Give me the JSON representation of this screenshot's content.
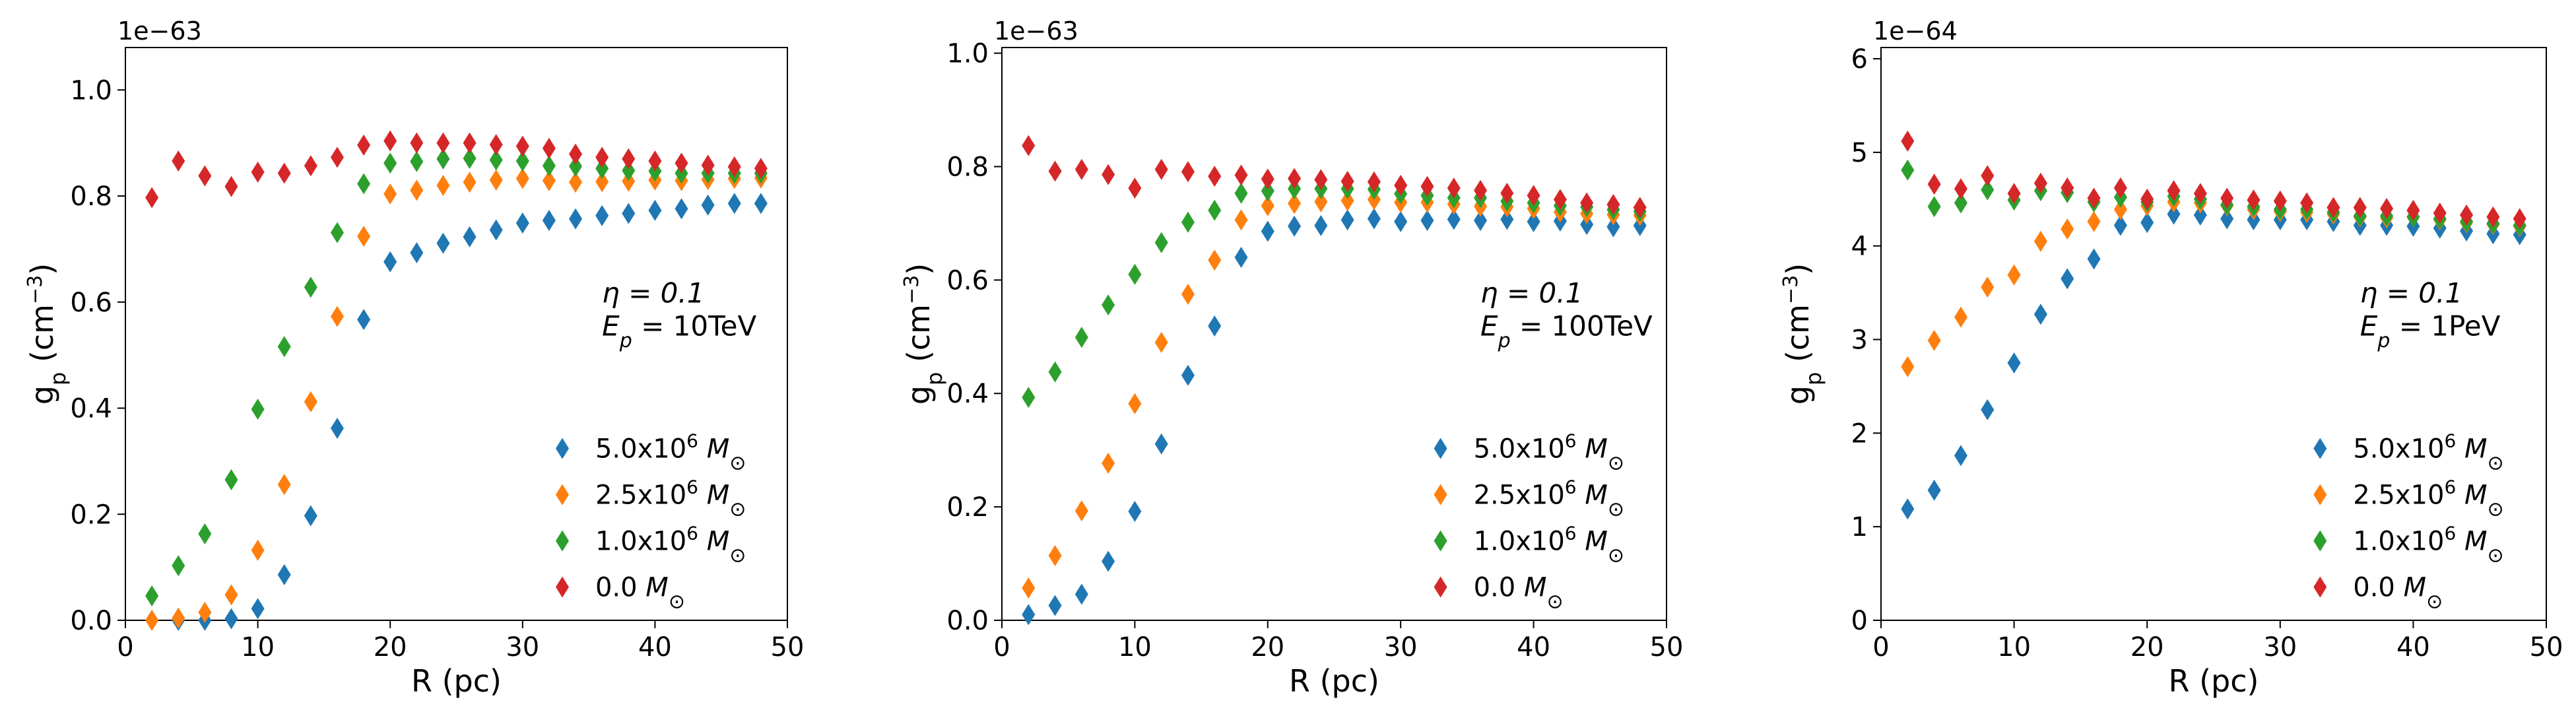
{
  "chart_data": [
    {
      "type": "scatter",
      "marker": "diamond",
      "xlabel": "R (pc)",
      "ylabel": "g_p (cm^-3)",
      "ylabel_parts": {
        "base": "g",
        "sub": "p",
        "unit_open": " (cm",
        "sup": "−3",
        "unit_close": ")"
      },
      "offset_text": "1e−63",
      "xlim": [
        0,
        50
      ],
      "ylim": [
        0.0,
        1.08
      ],
      "xticks": [
        0,
        10,
        20,
        30,
        40,
        50
      ],
      "xtick_labels": [
        "0",
        "10",
        "20",
        "30",
        "40",
        "50"
      ],
      "yticks": [
        0.0,
        0.2,
        0.4,
        0.6,
        0.8,
        1.0
      ],
      "ytick_labels": [
        "0.0",
        "0.2",
        "0.4",
        "0.6",
        "0.8",
        "1.0"
      ],
      "annotation": {
        "eta": "η = 0.1",
        "ep_var": "E",
        "ep_sub": "p",
        "ep_val": " = 10TeV"
      },
      "x": [
        2,
        4,
        6,
        8,
        10,
        12,
        14,
        16,
        18,
        20,
        22,
        24,
        26,
        28,
        30,
        32,
        34,
        36,
        38,
        40,
        42,
        44,
        46,
        48
      ],
      "series": [
        {
          "name": "5.0x10^6 M_⊙",
          "color": "#1f77b4",
          "label": {
            "pre": "5.0x10",
            "sup": "6",
            "post": " M",
            "sub": "⊙"
          },
          "values": [
            0.0,
            0.0,
            0.0,
            0.003,
            0.022,
            0.086,
            0.197,
            0.362,
            0.567,
            0.676,
            0.693,
            0.711,
            0.723,
            0.736,
            0.749,
            0.754,
            0.757,
            0.763,
            0.767,
            0.773,
            0.776,
            0.783,
            0.786,
            0.786
          ]
        },
        {
          "name": "2.5x10^6 M_⊙",
          "color": "#ff7f0e",
          "label": {
            "pre": "2.5x10",
            "sup": "6",
            "post": " M",
            "sub": "⊙"
          },
          "values": [
            0.0,
            0.004,
            0.015,
            0.048,
            0.132,
            0.256,
            0.412,
            0.573,
            0.724,
            0.804,
            0.811,
            0.82,
            0.826,
            0.83,
            0.833,
            0.829,
            0.826,
            0.827,
            0.828,
            0.83,
            0.829,
            0.831,
            0.833,
            0.834
          ]
        },
        {
          "name": "1.0x10^6 M_⊙",
          "color": "#2ca02c",
          "label": {
            "pre": "1.0x10",
            "sup": "6",
            "post": " M",
            "sub": "⊙"
          },
          "values": [
            0.046,
            0.103,
            0.163,
            0.265,
            0.398,
            0.516,
            0.628,
            0.731,
            0.823,
            0.862,
            0.865,
            0.87,
            0.871,
            0.868,
            0.866,
            0.857,
            0.856,
            0.852,
            0.848,
            0.847,
            0.843,
            0.843,
            0.843,
            0.843
          ]
        },
        {
          "name": "0.0 M_⊙",
          "color": "#d62728",
          "label": {
            "pre": "0.0",
            "sup": "",
            "post": " M",
            "sub": "⊙"
          },
          "values": [
            0.797,
            0.866,
            0.838,
            0.818,
            0.845,
            0.843,
            0.857,
            0.873,
            0.896,
            0.904,
            0.9,
            0.9,
            0.9,
            0.897,
            0.894,
            0.89,
            0.879,
            0.873,
            0.87,
            0.866,
            0.862,
            0.858,
            0.855,
            0.852
          ]
        }
      ]
    },
    {
      "type": "scatter",
      "marker": "diamond",
      "xlabel": "R (pc)",
      "ylabel": "g_p (cm^-3)",
      "ylabel_parts": {
        "base": "g",
        "sub": "p",
        "unit_open": " (cm",
        "sup": "−3",
        "unit_close": ")"
      },
      "offset_text": "1e−63",
      "xlim": [
        0,
        50
      ],
      "ylim": [
        0.0,
        1.01
      ],
      "xticks": [
        0,
        10,
        20,
        30,
        40,
        50
      ],
      "xtick_labels": [
        "0",
        "10",
        "20",
        "30",
        "40",
        "50"
      ],
      "yticks": [
        0.0,
        0.2,
        0.4,
        0.6,
        0.8,
        1.0
      ],
      "ytick_labels": [
        "0.0",
        "0.2",
        "0.4",
        "0.6",
        "0.8",
        "1.0"
      ],
      "annotation": {
        "eta": "η = 0.1",
        "ep_var": "E",
        "ep_sub": "p",
        "ep_val": " = 100TeV"
      },
      "x": [
        2,
        4,
        6,
        8,
        10,
        12,
        14,
        16,
        18,
        20,
        22,
        24,
        26,
        28,
        30,
        32,
        34,
        36,
        38,
        40,
        42,
        44,
        46,
        48
      ],
      "series": [
        {
          "name": "5.0x10^6 M_⊙",
          "color": "#1f77b4",
          "label": {
            "pre": "5.0x10",
            "sup": "6",
            "post": " M",
            "sub": "⊙"
          },
          "values": [
            0.01,
            0.026,
            0.046,
            0.104,
            0.192,
            0.311,
            0.432,
            0.519,
            0.64,
            0.686,
            0.695,
            0.696,
            0.706,
            0.708,
            0.703,
            0.705,
            0.707,
            0.705,
            0.707,
            0.703,
            0.704,
            0.698,
            0.694,
            0.696
          ]
        },
        {
          "name": "2.5x10^6 M_⊙",
          "color": "#ff7f0e",
          "label": {
            "pre": "2.5x10",
            "sup": "6",
            "post": " M",
            "sub": "⊙"
          },
          "values": [
            0.057,
            0.114,
            0.193,
            0.277,
            0.382,
            0.49,
            0.575,
            0.635,
            0.706,
            0.731,
            0.735,
            0.738,
            0.74,
            0.742,
            0.737,
            0.737,
            0.734,
            0.73,
            0.729,
            0.726,
            0.72,
            0.717,
            0.715,
            0.714
          ]
        },
        {
          "name": "1.0x10^6 M_⊙",
          "color": "#2ca02c",
          "label": {
            "pre": "1.0x10",
            "sup": "6",
            "post": " M",
            "sub": "⊙"
          },
          "values": [
            0.393,
            0.438,
            0.499,
            0.556,
            0.61,
            0.666,
            0.702,
            0.723,
            0.753,
            0.757,
            0.761,
            0.761,
            0.761,
            0.76,
            0.752,
            0.749,
            0.745,
            0.745,
            0.739,
            0.736,
            0.731,
            0.729,
            0.724,
            0.721
          ]
        },
        {
          "name": "0.0 M_⊙",
          "color": "#d62728",
          "label": {
            "pre": "0.0",
            "sup": "",
            "post": " M",
            "sub": "⊙"
          },
          "values": [
            0.837,
            0.792,
            0.795,
            0.786,
            0.762,
            0.795,
            0.791,
            0.783,
            0.785,
            0.778,
            0.779,
            0.777,
            0.774,
            0.773,
            0.767,
            0.765,
            0.762,
            0.758,
            0.753,
            0.749,
            0.742,
            0.736,
            0.733,
            0.728
          ]
        }
      ]
    },
    {
      "type": "scatter",
      "marker": "diamond",
      "xlabel": "R (pc)",
      "ylabel": "g_p (cm^-3)",
      "ylabel_parts": {
        "base": "g",
        "sub": "p",
        "unit_open": " (cm",
        "sup": "−3",
        "unit_close": ")"
      },
      "offset_text": "1e−64",
      "xlim": [
        0,
        50
      ],
      "ylim": [
        0,
        6.12
      ],
      "xticks": [
        0,
        10,
        20,
        30,
        40,
        50
      ],
      "xtick_labels": [
        "0",
        "10",
        "20",
        "30",
        "40",
        "50"
      ],
      "yticks": [
        0,
        1,
        2,
        3,
        4,
        5,
        6
      ],
      "ytick_labels": [
        "0",
        "1",
        "2",
        "3",
        "4",
        "5",
        "6"
      ],
      "annotation": {
        "eta": "η = 0.1",
        "ep_var": "E",
        "ep_sub": "p",
        "ep_val": " = 1PeV"
      },
      "x": [
        2,
        4,
        6,
        8,
        10,
        12,
        14,
        16,
        18,
        20,
        22,
        24,
        26,
        28,
        30,
        32,
        34,
        36,
        38,
        40,
        42,
        44,
        46,
        48
      ],
      "series": [
        {
          "name": "5.0x10^6 M_⊙",
          "color": "#1f77b4",
          "label": {
            "pre": "5.0x10",
            "sup": "6",
            "post": " M",
            "sub": "⊙"
          },
          "values": [
            1.19,
            1.39,
            1.76,
            2.25,
            2.75,
            3.27,
            3.65,
            3.86,
            4.22,
            4.25,
            4.34,
            4.33,
            4.29,
            4.28,
            4.28,
            4.28,
            4.26,
            4.22,
            4.22,
            4.21,
            4.19,
            4.16,
            4.13,
            4.12
          ]
        },
        {
          "name": "2.5x10^6 M_⊙",
          "color": "#ff7f0e",
          "label": {
            "pre": "2.5x10",
            "sup": "6",
            "post": " M",
            "sub": "⊙"
          },
          "values": [
            2.71,
            2.99,
            3.24,
            3.56,
            3.69,
            4.05,
            4.18,
            4.26,
            4.39,
            4.43,
            4.47,
            4.46,
            4.43,
            4.39,
            4.37,
            4.36,
            4.34,
            4.31,
            4.3,
            4.31,
            4.28,
            4.25,
            4.23,
            4.21
          ]
        },
        {
          "name": "1.0x10^6 M_⊙",
          "color": "#2ca02c",
          "label": {
            "pre": "1.0x10",
            "sup": "6",
            "post": " M",
            "sub": "⊙"
          },
          "values": [
            4.81,
            4.42,
            4.46,
            4.6,
            4.49,
            4.59,
            4.57,
            4.47,
            4.52,
            4.47,
            4.53,
            4.5,
            4.44,
            4.42,
            4.39,
            4.39,
            4.36,
            4.32,
            4.32,
            4.31,
            4.29,
            4.26,
            4.24,
            4.22
          ]
        },
        {
          "name": "0.0 M_⊙",
          "color": "#d62728",
          "label": {
            "pre": "0.0",
            "sup": "",
            "post": " M",
            "sub": "⊙"
          },
          "values": [
            5.12,
            4.66,
            4.61,
            4.75,
            4.56,
            4.67,
            4.62,
            4.51,
            4.62,
            4.5,
            4.59,
            4.56,
            4.51,
            4.49,
            4.48,
            4.46,
            4.41,
            4.41,
            4.4,
            4.38,
            4.35,
            4.33,
            4.31,
            4.29
          ]
        }
      ]
    }
  ]
}
